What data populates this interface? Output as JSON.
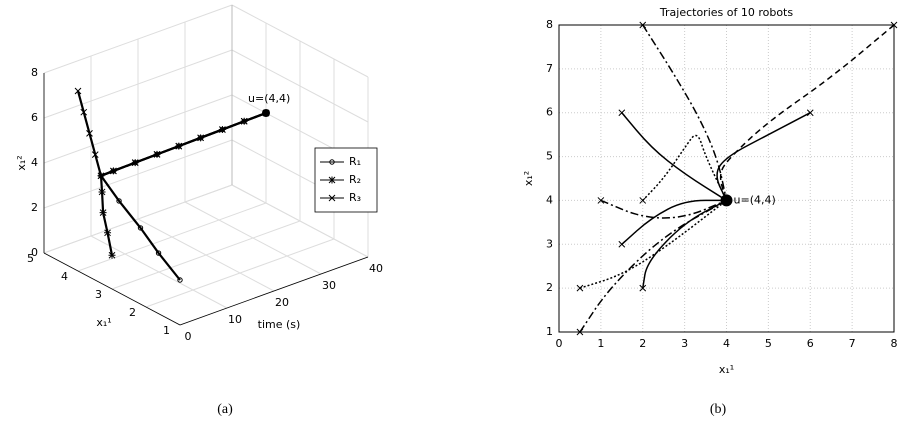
{
  "chart_data": [
    {
      "type": "line3d",
      "caption": "(a)",
      "xlabel": "time (s)",
      "ylabel": "x₁¹",
      "zlabel": "x₁²",
      "xlim": [
        0,
        40
      ],
      "xticks": [
        0,
        10,
        20,
        30,
        40
      ],
      "ylim": [
        1,
        5
      ],
      "yticks": [
        1,
        2,
        3,
        4,
        5
      ],
      "zlim": [
        0,
        8
      ],
      "zticks": [
        0,
        2,
        4,
        6,
        8
      ],
      "grid": true,
      "annotation": "u=(4,4)",
      "series": [
        {
          "name": "R₁",
          "marker": "o",
          "color": "#000",
          "x": [
            0,
            0.5,
            1,
            1.5,
            2,
            5,
            10,
            15,
            20,
            25,
            30,
            35,
            40
          ],
          "y": [
            1,
            1.7,
            2.3,
            3,
            3.6,
            3.65,
            3.7,
            3.75,
            3.8,
            3.85,
            3.9,
            3.95,
            4
          ],
          "z": [
            2,
            2.6,
            3.2,
            3.8,
            4.4,
            4.35,
            4.3,
            4.25,
            4.2,
            4.15,
            4.1,
            4.05,
            4
          ]
        },
        {
          "name": "R₂",
          "marker": "*",
          "color": "#000",
          "x": [
            0,
            0.5,
            1,
            1.5,
            2,
            5,
            10,
            15,
            20,
            25,
            30,
            35,
            40
          ],
          "y": [
            3,
            3.2,
            3.4,
            3.5,
            3.6,
            3.65,
            3.7,
            3.75,
            3.8,
            3.85,
            3.9,
            3.95,
            4
          ],
          "z": [
            1.5,
            2.3,
            3,
            3.8,
            4.4,
            4.35,
            4.3,
            4.25,
            4.2,
            4.15,
            4.1,
            4.05,
            4
          ]
        },
        {
          "name": "R₃",
          "marker": "x",
          "color": "#000",
          "x": [
            0,
            0.5,
            1,
            1.5,
            2,
            5,
            10,
            15,
            20,
            25,
            30,
            35,
            40
          ],
          "y": [
            4,
            3.9,
            3.8,
            3.7,
            3.6,
            3.65,
            3.7,
            3.75,
            3.8,
            3.85,
            3.9,
            3.95,
            4
          ],
          "z": [
            8,
            7.1,
            6.2,
            5.3,
            4.4,
            4.35,
            4.3,
            4.25,
            4.2,
            4.15,
            4.1,
            4.05,
            4
          ]
        }
      ]
    },
    {
      "type": "line",
      "caption": "(b)",
      "title": "Trajectories of 10 robots",
      "xlabel": "x₁¹",
      "ylabel": "x₁²",
      "xlim": [
        0,
        8
      ],
      "xticks": [
        0,
        1,
        2,
        3,
        4,
        5,
        6,
        7,
        8
      ],
      "ylim": [
        1,
        8
      ],
      "yticks": [
        1,
        2,
        3,
        4,
        5,
        6,
        7,
        8
      ],
      "grid": true,
      "annotation": "u=(4,4)",
      "start_marker": "x",
      "series": [
        {
          "color": "#000",
          "dash": "dashdot",
          "x": [
            2,
            2.8,
            3.4,
            3.8,
            4
          ],
          "y": [
            8,
            6.8,
            5.8,
            4.9,
            4
          ]
        },
        {
          "color": "#000",
          "dash": "dashed",
          "x": [
            8,
            6.5,
            5,
            4.1,
            3.8,
            4
          ],
          "y": [
            8,
            6.8,
            5.8,
            5,
            4.6,
            4
          ]
        },
        {
          "color": "#000",
          "dash": "solid",
          "x": [
            1.5,
            2.2,
            3,
            4
          ],
          "y": [
            6,
            5.2,
            4.6,
            4
          ]
        },
        {
          "color": "#000",
          "dash": "solid",
          "x": [
            6,
            5,
            4,
            3.7,
            4
          ],
          "y": [
            6,
            5.5,
            5,
            4.6,
            4
          ]
        },
        {
          "color": "#000",
          "dash": "dashdot",
          "x": [
            1,
            2,
            3,
            4
          ],
          "y": [
            4,
            3.6,
            3.6,
            4
          ]
        },
        {
          "color": "#000",
          "dash": "dotted",
          "x": [
            2,
            2.5,
            3,
            3.3,
            3.5,
            4
          ],
          "y": [
            4,
            4.5,
            5.2,
            5.6,
            5,
            4
          ]
        },
        {
          "color": "#000",
          "dash": "solid",
          "x": [
            1.5,
            2.2,
            3,
            4
          ],
          "y": [
            3,
            3.6,
            4,
            4
          ]
        },
        {
          "color": "#000",
          "dash": "dotted",
          "x": [
            0.5,
            1.5,
            2.5,
            4
          ],
          "y": [
            2,
            2.3,
            2.9,
            4
          ]
        },
        {
          "color": "#000",
          "dash": "solid",
          "x": [
            2,
            2.1,
            3,
            4
          ],
          "y": [
            2,
            2.6,
            3.5,
            4
          ]
        },
        {
          "color": "#000",
          "dash": "dashdot",
          "x": [
            0.5,
            1.2,
            2.5,
            4
          ],
          "y": [
            1,
            2,
            3.2,
            4
          ]
        }
      ]
    }
  ]
}
